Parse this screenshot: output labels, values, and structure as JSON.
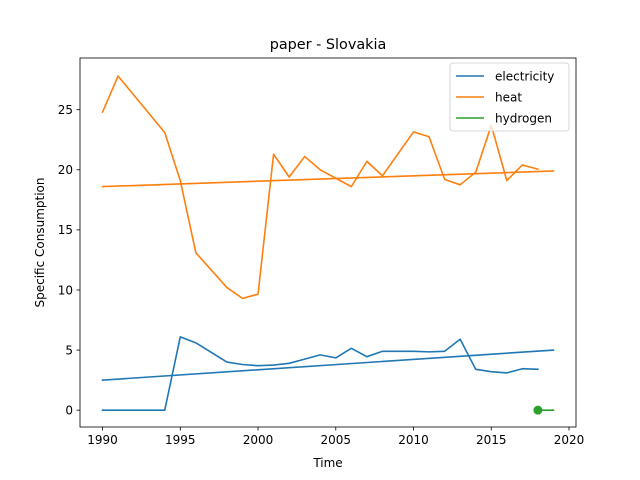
{
  "chart_data": {
    "type": "line",
    "title": "paper - Slovakia",
    "xlabel": "Time",
    "ylabel": "Specific Consumption",
    "xlim": [
      1988.55,
      2020.45
    ],
    "ylim": [
      -1.4,
      29.3
    ],
    "xticks": [
      1990,
      1995,
      2000,
      2005,
      2010,
      2015,
      2020
    ],
    "yticks": [
      0,
      5,
      10,
      15,
      20,
      25
    ],
    "grid": false,
    "legend_position": "top-right",
    "series": [
      {
        "name": "electricity",
        "color": "#1f77b4",
        "style": "line",
        "x": [
          1990,
          1991,
          1992,
          1993,
          1994,
          1995,
          1996,
          1997,
          1998,
          1999,
          2000,
          2001,
          2002,
          2003,
          2004,
          2005,
          2006,
          2007,
          2008,
          2009,
          2010,
          2011,
          2012,
          2013,
          2014,
          2015,
          2016,
          2017,
          2018
        ],
        "y": [
          0,
          0,
          0,
          0,
          0,
          6.1,
          5.6,
          4.8,
          4.0,
          3.8,
          3.7,
          3.75,
          3.9,
          4.25,
          4.6,
          4.35,
          5.15,
          4.45,
          4.9,
          4.9,
          4.9,
          4.85,
          4.9,
          5.9,
          3.4,
          3.2,
          3.1,
          3.45,
          3.4
        ]
      },
      {
        "name": "electricity trend",
        "color": "#1f77b4",
        "style": "line",
        "x": [
          1990,
          2019
        ],
        "y": [
          2.5,
          5.0
        ]
      },
      {
        "name": "heat",
        "color": "#ff7f0e",
        "style": "line",
        "x": [
          1990,
          1991,
          1994,
          1995,
          1996,
          1998,
          1999,
          2000,
          2001,
          2002,
          2003,
          2004,
          2006,
          2007,
          2008,
          2010,
          2011,
          2012,
          2013,
          2014,
          2015,
          2016,
          2017,
          2018
        ],
        "y": [
          24.8,
          27.8,
          23.1,
          19.1,
          13.1,
          10.2,
          9.3,
          9.65,
          21.3,
          19.4,
          21.1,
          20.0,
          18.6,
          20.7,
          19.5,
          23.15,
          22.75,
          19.2,
          18.75,
          19.8,
          23.7,
          19.1,
          20.4,
          20.05
        ]
      },
      {
        "name": "heat trend",
        "color": "#ff7f0e",
        "style": "line",
        "x": [
          1990,
          2019
        ],
        "y": [
          18.6,
          19.9
        ]
      },
      {
        "name": "hydrogen",
        "color": "#2ca02c",
        "style": "marker",
        "x": [
          2018
        ],
        "y": [
          0
        ]
      },
      {
        "name": "hydrogen trend",
        "color": "#2ca02c",
        "style": "line",
        "x": [
          2018,
          2019
        ],
        "y": [
          0,
          0
        ]
      }
    ],
    "legend": [
      {
        "label": "electricity",
        "color": "#1f77b4"
      },
      {
        "label": "heat",
        "color": "#ff7f0e"
      },
      {
        "label": "hydrogen",
        "color": "#2ca02c"
      }
    ]
  }
}
